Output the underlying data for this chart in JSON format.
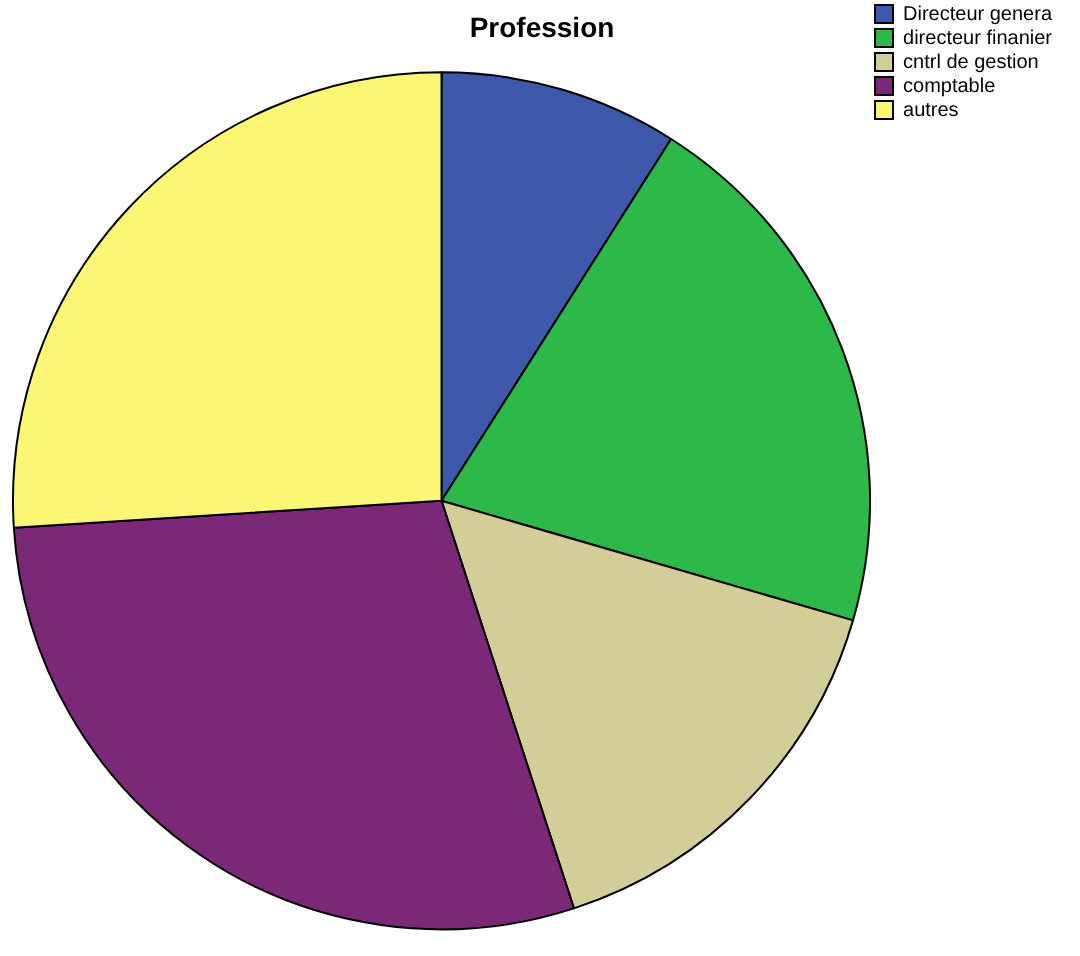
{
  "chart_data": {
    "type": "pie",
    "title": "Profession",
    "categories": [
      "Directeur genera",
      "directeur finanier",
      "cntrl de gestion",
      "comptable",
      "autres"
    ],
    "values": [
      9,
      20.5,
      15.5,
      29,
      26
    ],
    "colors": [
      "#3e58ac",
      "#2db84a",
      "#d3ce97",
      "#7b2878",
      "#fbf775"
    ],
    "legend": "top right"
  }
}
